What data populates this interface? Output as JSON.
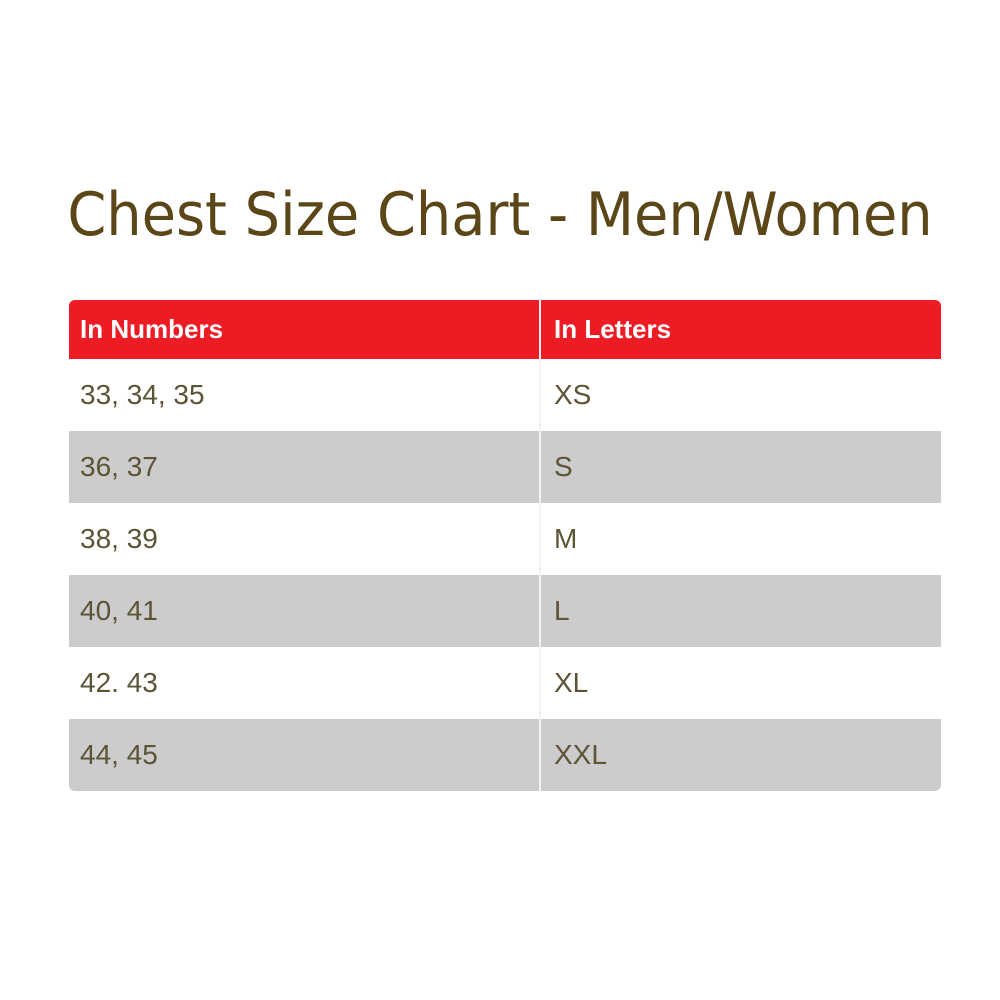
{
  "title": "Chest Size Chart - Men/Women",
  "colors": {
    "header": "#ed1c24",
    "stripe": "#cccccc",
    "title": "#5a4617",
    "text": "#5b5435"
  },
  "table": {
    "headers": [
      "In Numbers",
      "In Letters"
    ],
    "rows": [
      [
        "33, 34, 35",
        "XS"
      ],
      [
        "36, 37",
        "S"
      ],
      [
        "38, 39",
        "M"
      ],
      [
        "40, 41",
        "L"
      ],
      [
        "42. 43",
        "XL"
      ],
      [
        "44, 45",
        "XXL"
      ]
    ]
  }
}
